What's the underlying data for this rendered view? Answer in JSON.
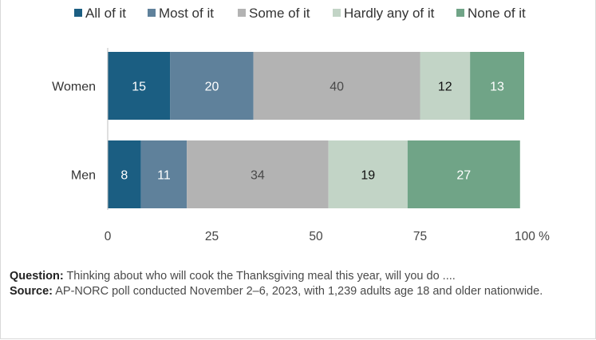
{
  "chart_data": {
    "type": "bar",
    "orientation": "horizontal",
    "stacked": true,
    "categories": [
      "Women",
      "Men"
    ],
    "series": [
      {
        "name": "All of it",
        "values": [
          15,
          8
        ],
        "color": "#1b5e82",
        "label_color": "#ffffff"
      },
      {
        "name": "Most of it",
        "values": [
          20,
          11
        ],
        "color": "#5f819b",
        "label_color": "#ffffff"
      },
      {
        "name": "Some of it",
        "values": [
          40,
          34
        ],
        "color": "#b3b3b3",
        "label_color": "#4a4a4a"
      },
      {
        "name": "Hardly any of it",
        "values": [
          12,
          19
        ],
        "color": "#c2d4c6",
        "label_color": "#111111"
      },
      {
        "name": "None of it",
        "values": [
          13,
          27
        ],
        "color": "#70a487",
        "label_color": "#ffffff"
      }
    ],
    "xlim": [
      0,
      100
    ],
    "x_ticks": [
      "0",
      "25",
      "50",
      "75",
      "100 %"
    ],
    "x_tick_values": [
      0,
      25,
      50,
      75,
      100
    ],
    "legend_position": "top",
    "grid": false
  },
  "notes": {
    "question_label": "Question:",
    "question_text": " Thinking about who will cook the Thanksgiving meal this year, will you do ....",
    "source_label": "Source:",
    "source_text": " AP-NORC poll conducted November 2–6, 2023, with 1,239  adults age 18 and older nationwide."
  }
}
